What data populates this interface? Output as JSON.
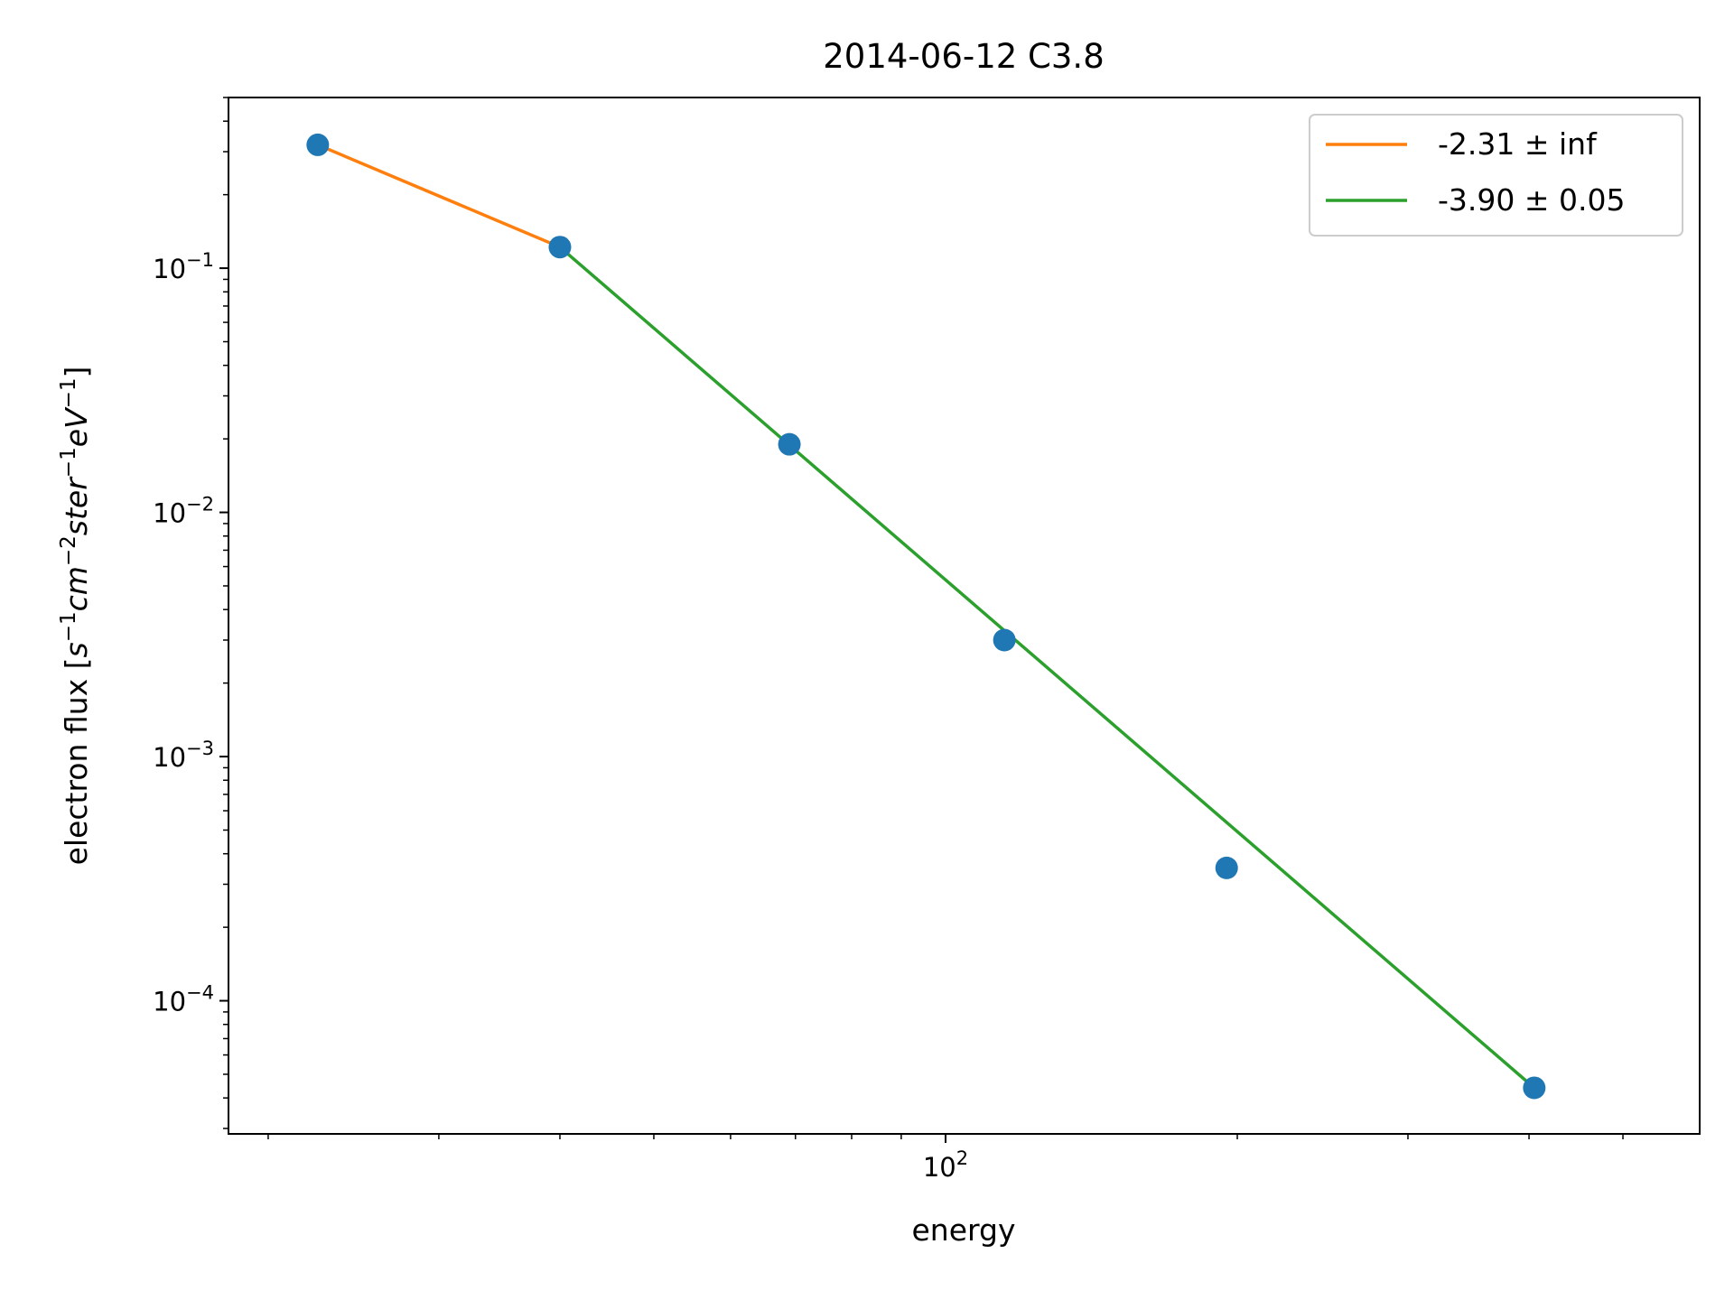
{
  "chart_data": {
    "type": "scatter",
    "title": "2014-06-12 C3.8",
    "xlabel": "energy",
    "ylabel_base": "electron flux [",
    "ylabel_math": [
      {
        "t": "s"
      },
      {
        "t": "−1",
        "sup": true
      },
      {
        "t": "cm"
      },
      {
        "t": "−2",
        "sup": true
      },
      {
        "t": "ster"
      },
      {
        "t": "−1",
        "sup": true
      },
      {
        "t": "eV"
      },
      {
        "t": "−1",
        "sup": true
      }
    ],
    "ylabel_close": "]",
    "xscale": "log",
    "yscale": "log",
    "xlim": [
      18.2,
      600
    ],
    "ylim": [
      2.85e-05,
      0.5
    ],
    "x_major_ticks": [
      {
        "value": 100,
        "base": "10",
        "exp": "2"
      }
    ],
    "x_minor_ticks": [
      20,
      30,
      40,
      50,
      60,
      70,
      80,
      90,
      200,
      300,
      400,
      500
    ],
    "y_major_ticks": [
      {
        "value": 0.1,
        "base": "10",
        "exp": "−1"
      },
      {
        "value": 0.01,
        "base": "10",
        "exp": "−2"
      },
      {
        "value": 0.001,
        "base": "10",
        "exp": "−3"
      },
      {
        "value": 0.0001,
        "base": "10",
        "exp": "−4"
      }
    ],
    "grid": false,
    "legend_position": "top-right",
    "points": {
      "color": "#1f77b4",
      "x": [
        22.5,
        40,
        69,
        115,
        195,
        405
      ],
      "y": [
        0.32,
        0.122,
        0.019,
        0.003,
        0.00035,
        4.4e-05
      ]
    },
    "series": [
      {
        "name": "-2.31 ± inf",
        "color": "#ff7f0e",
        "x": [
          22.5,
          40
        ],
        "y": [
          0.32,
          0.122
        ]
      },
      {
        "name": "-3.90 ± 0.05",
        "color": "#2ca02c",
        "x": [
          40,
          405
        ],
        "y": [
          0.122,
          4.4e-05
        ]
      }
    ]
  }
}
